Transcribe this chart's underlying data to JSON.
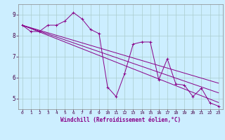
{
  "xlabel": "Windchill (Refroidissement éolien,°C)",
  "background_color": "#cceeff",
  "grid_color": "#aacccc",
  "line_color": "#880088",
  "xlim": [
    -0.5,
    23.5
  ],
  "ylim": [
    4.5,
    9.5
  ],
  "yticks": [
    5,
    6,
    7,
    8,
    9
  ],
  "xticks": [
    0,
    1,
    2,
    3,
    4,
    5,
    6,
    7,
    8,
    9,
    10,
    11,
    12,
    13,
    14,
    15,
    16,
    17,
    18,
    19,
    20,
    21,
    22,
    23
  ],
  "data_series": [
    8.5,
    8.2,
    8.2,
    8.5,
    8.5,
    8.7,
    9.1,
    8.8,
    8.3,
    8.1,
    5.55,
    5.1,
    6.2,
    7.6,
    7.7,
    7.7,
    5.9,
    6.9,
    5.7,
    5.65,
    5.1,
    5.5,
    4.8,
    4.65
  ],
  "trend1": [
    8.5,
    8.34,
    8.18,
    8.02,
    7.86,
    7.7,
    7.54,
    7.38,
    7.22,
    7.06,
    6.9,
    6.74,
    6.58,
    6.42,
    6.26,
    6.1,
    5.94,
    5.78,
    5.62,
    5.46,
    5.3,
    5.14,
    4.98,
    4.82
  ],
  "trend2": [
    8.5,
    8.36,
    8.22,
    8.08,
    7.94,
    7.8,
    7.66,
    7.52,
    7.38,
    7.24,
    7.1,
    6.96,
    6.82,
    6.68,
    6.54,
    6.4,
    6.26,
    6.12,
    5.98,
    5.84,
    5.7,
    5.56,
    5.42,
    5.28
  ],
  "trend3": [
    8.5,
    8.38,
    8.26,
    8.14,
    8.02,
    7.9,
    7.78,
    7.66,
    7.54,
    7.42,
    7.3,
    7.18,
    7.06,
    6.94,
    6.82,
    6.7,
    6.58,
    6.46,
    6.34,
    6.22,
    6.1,
    5.98,
    5.86,
    5.74
  ]
}
